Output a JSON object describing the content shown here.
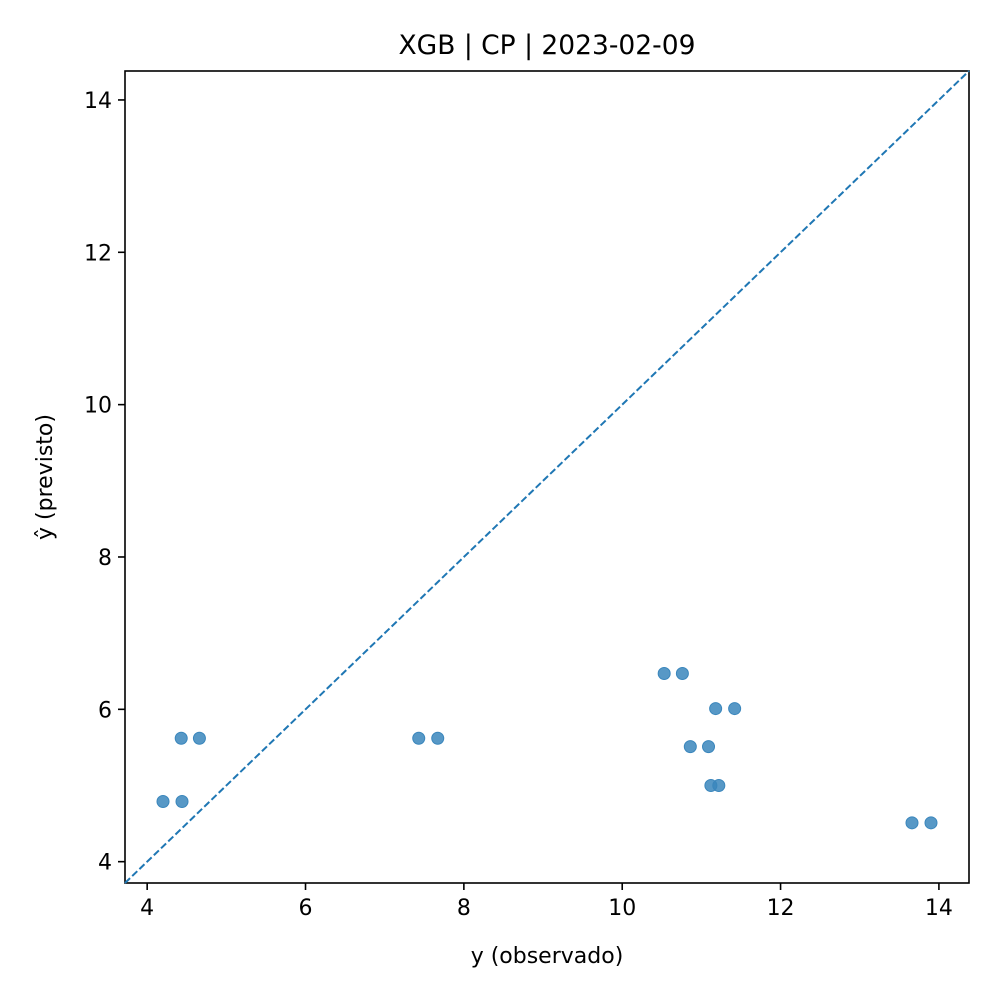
{
  "chart_data": {
    "type": "scatter",
    "title": "XGB | CP | 2023-02-09",
    "xlabel": "y (observado)",
    "ylabel": "ŷ (previsto)",
    "xlim": [
      3.72,
      14.38
    ],
    "ylim": [
      3.72,
      14.38
    ],
    "xticks": [
      4,
      6,
      8,
      10,
      12,
      14
    ],
    "yticks": [
      4,
      6,
      8,
      10,
      12,
      14
    ],
    "grid": false,
    "reference_line": {
      "style": "dashed",
      "from": [
        3.72,
        3.72
      ],
      "to": [
        14.38,
        14.38
      ]
    },
    "point_color": "#3a86bc",
    "line_color": "#1f77b4",
    "points": [
      {
        "x": 4.2,
        "y": 4.79
      },
      {
        "x": 4.44,
        "y": 4.79
      },
      {
        "x": 4.43,
        "y": 5.62
      },
      {
        "x": 4.66,
        "y": 5.62
      },
      {
        "x": 7.43,
        "y": 5.62
      },
      {
        "x": 7.67,
        "y": 5.62
      },
      {
        "x": 10.53,
        "y": 6.47
      },
      {
        "x": 10.76,
        "y": 6.47
      },
      {
        "x": 11.18,
        "y": 6.01
      },
      {
        "x": 11.42,
        "y": 6.01
      },
      {
        "x": 10.86,
        "y": 5.51
      },
      {
        "x": 11.09,
        "y": 5.51
      },
      {
        "x": 11.12,
        "y": 5.0
      },
      {
        "x": 11.22,
        "y": 5.0
      },
      {
        "x": 13.66,
        "y": 4.51
      },
      {
        "x": 13.9,
        "y": 4.51
      }
    ]
  }
}
